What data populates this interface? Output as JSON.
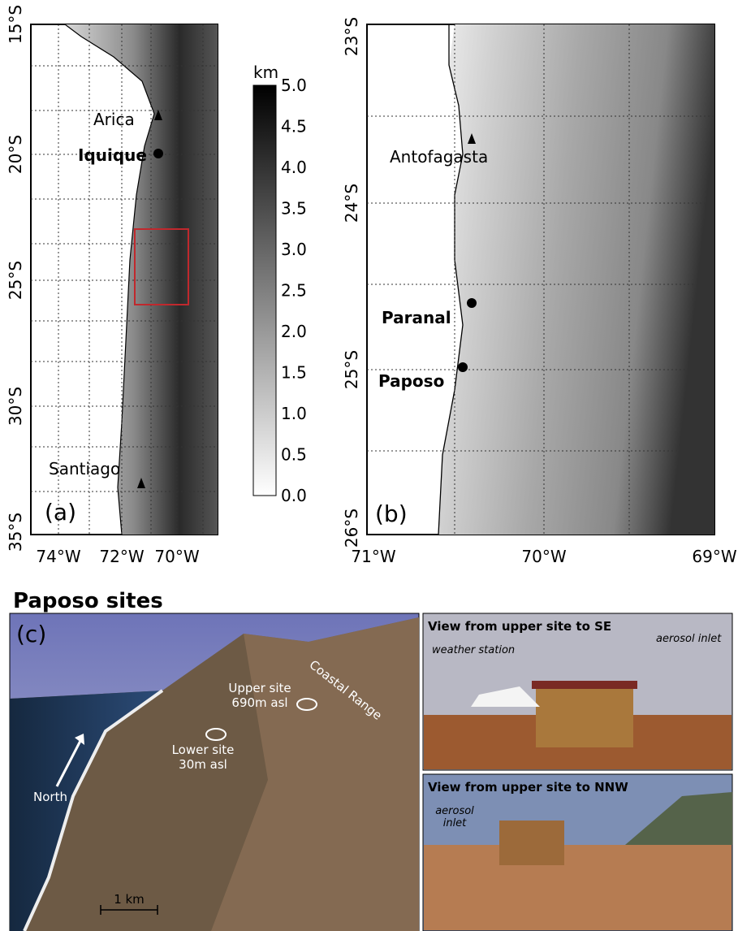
{
  "panel_a": {
    "label": "(a)",
    "lat_labels": [
      "15°S",
      "20°S",
      "25°S",
      "30°S",
      "35°S"
    ],
    "lon_labels": [
      "74°W",
      "72°W",
      "70°W"
    ],
    "places": [
      "Arica",
      "Iquique",
      "Santiago"
    ]
  },
  "colorbar": {
    "unit": "km",
    "labels": [
      "5.0",
      "4.5",
      "4.0",
      "3.5",
      "3.0",
      "2.5",
      "2.0",
      "1.5",
      "1.0",
      "0.5",
      "0.0"
    ]
  },
  "panel_b": {
    "label": "(b)",
    "lat_labels": [
      "23°S",
      "24°S",
      "25°S",
      "26°S"
    ],
    "lon_labels": [
      "71°W",
      "70°W",
      "69°W"
    ],
    "places": [
      "Antofagasta",
      "Paranal",
      "Paposo"
    ]
  },
  "panel_c": {
    "title": "Paposo sites",
    "label": "(c)",
    "annotations": [
      "Coastal Range",
      "Upper site",
      "690m asl",
      "Lower site",
      "30m asl",
      "North",
      "1 km"
    ],
    "photo_se": {
      "title": "View from upper site to SE",
      "labels": [
        "weather station",
        "aerosol inlet"
      ]
    },
    "photo_nnw": {
      "title": "View from upper site to NNW",
      "labels": [
        "aerosol",
        "inlet"
      ]
    }
  }
}
